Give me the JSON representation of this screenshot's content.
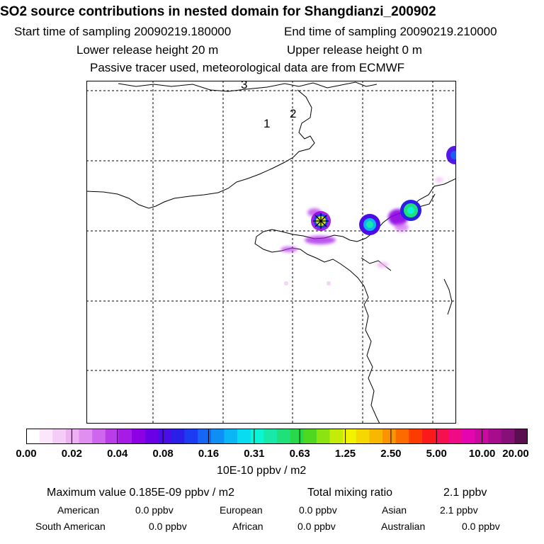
{
  "header": {
    "title": "SO2 source contributions in nested domain for Shangdianzi_200902",
    "start_time": "Start time of sampling 20090219.180000",
    "end_time": "End time of sampling 20090219.210000",
    "lower_release": "Lower release height   20 m",
    "upper_release": "Upper release height    0 m",
    "tracer_note": "Passive tracer used, meteorological data are from ECMWF"
  },
  "map": {
    "region_labels": [
      "1",
      "2",
      "3"
    ],
    "coast_color": "#000000",
    "grid_color": "#000000"
  },
  "legend": {
    "ticks": [
      "0.00",
      "0.02",
      "0.04",
      "0.08",
      "0.16",
      "0.31",
      "0.63",
      "1.25",
      "2.50",
      "5.00",
      "10.00",
      "20.00"
    ],
    "colors": [
      "#ffffff",
      "#fbe6fb",
      "#f5ccf7",
      "#eeb0f3",
      "#e08ef0",
      "#cf66ee",
      "#b83ce9",
      "#a61be6",
      "#8c00e3",
      "#6a00e6",
      "#4a0de8",
      "#2a1ee9",
      "#1b3cf0",
      "#1566f3",
      "#0f8ff5",
      "#0ab6f6",
      "#07dcf0",
      "#0af5d6",
      "#18e9a8",
      "#1fe079",
      "#27d84a",
      "#4fd820",
      "#8ce312",
      "#c4ec08",
      "#f1f200",
      "#f6d800",
      "#f8b800",
      "#fa9400",
      "#fb6b00",
      "#fc3b00",
      "#fb1a1a",
      "#f7104f",
      "#f00a85",
      "#e405b0",
      "#c80a9e",
      "#a60c8c",
      "#861078",
      "#5a0f50"
    ],
    "unit": "10E-10 ppbv / m2"
  },
  "summary": {
    "max_value": "Maximum value  0.185E-09 ppbv / m2",
    "total_mixing": "Total mixing ratio",
    "total_value": "2.1 ppbv",
    "regions": [
      {
        "name": "American",
        "value": "0.0 ppbv"
      },
      {
        "name": "European",
        "value": "0.0 ppbv"
      },
      {
        "name": "Asian",
        "value": "2.1 ppbv"
      },
      {
        "name": "South American",
        "value": "0.0 ppbv"
      },
      {
        "name": "African",
        "value": "0.0 ppbv"
      },
      {
        "name": "Australian",
        "value": "0.0 ppbv"
      }
    ]
  }
}
